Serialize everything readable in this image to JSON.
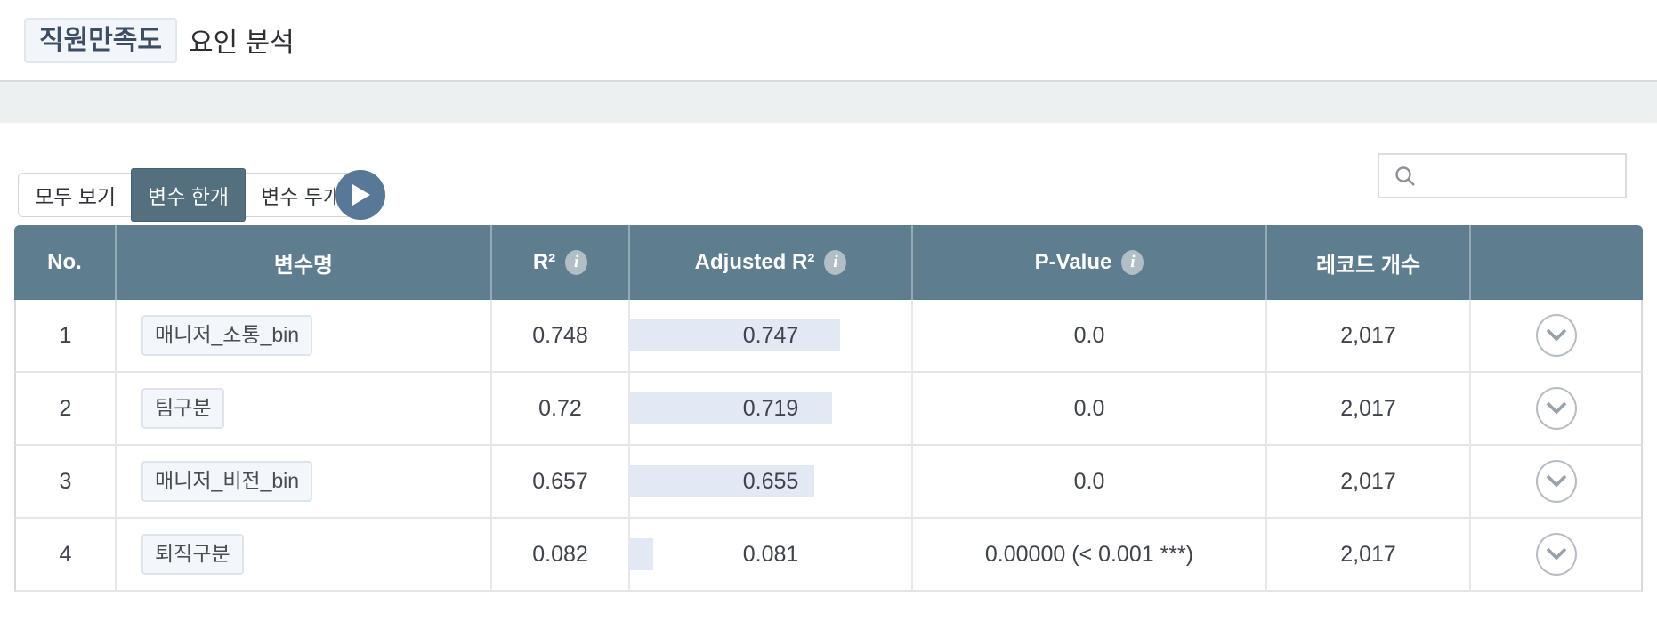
{
  "page": {
    "title_highlight": "직원만족도",
    "title_rest": "요인 분석"
  },
  "toolbar": {
    "filters": [
      {
        "label": "모두 보기",
        "selected": false
      },
      {
        "label": "변수 한개",
        "selected": true
      },
      {
        "label": "변수 두개",
        "selected": false
      }
    ],
    "search": {
      "value": "",
      "placeholder": ""
    }
  },
  "icons": {
    "info_glyph": "i"
  },
  "table": {
    "headers": [
      {
        "label": "No."
      },
      {
        "label": "변수명"
      },
      {
        "label": "R²",
        "has_info": true
      },
      {
        "label": "Adjusted R²",
        "has_info": true
      },
      {
        "label": "P-Value",
        "has_info": true
      },
      {
        "label": "레코드 개수"
      },
      {
        "label": ""
      }
    ],
    "rows": [
      {
        "no": "1",
        "var_name": "매니저_소통_bin",
        "r2": "0.748",
        "adj_r2": "0.747",
        "adj_r2_bar": 0.747,
        "p_value": "0.0",
        "records": "2,017"
      },
      {
        "no": "2",
        "var_name": "팀구분",
        "r2": "0.72",
        "adj_r2": "0.719",
        "adj_r2_bar": 0.719,
        "p_value": "0.0",
        "records": "2,017"
      },
      {
        "no": "3",
        "var_name": "매니저_비전_bin",
        "r2": "0.657",
        "adj_r2": "0.655",
        "adj_r2_bar": 0.655,
        "p_value": "0.0",
        "records": "2,017"
      },
      {
        "no": "4",
        "var_name": "퇴직구분",
        "r2": "0.082",
        "adj_r2": "0.081",
        "adj_r2_bar": 0.081,
        "p_value": "0.00000 (< 0.001 ***)",
        "records": "2,017"
      }
    ]
  },
  "colors": {
    "header_bg": "#5e7d8e",
    "selected_button_bg": "#546f7d",
    "play_button_bg": "#577897",
    "bar_fill": "#e3e9f4",
    "band_bg": "#edf0f1",
    "chip_bg": "#f3f6fa"
  }
}
